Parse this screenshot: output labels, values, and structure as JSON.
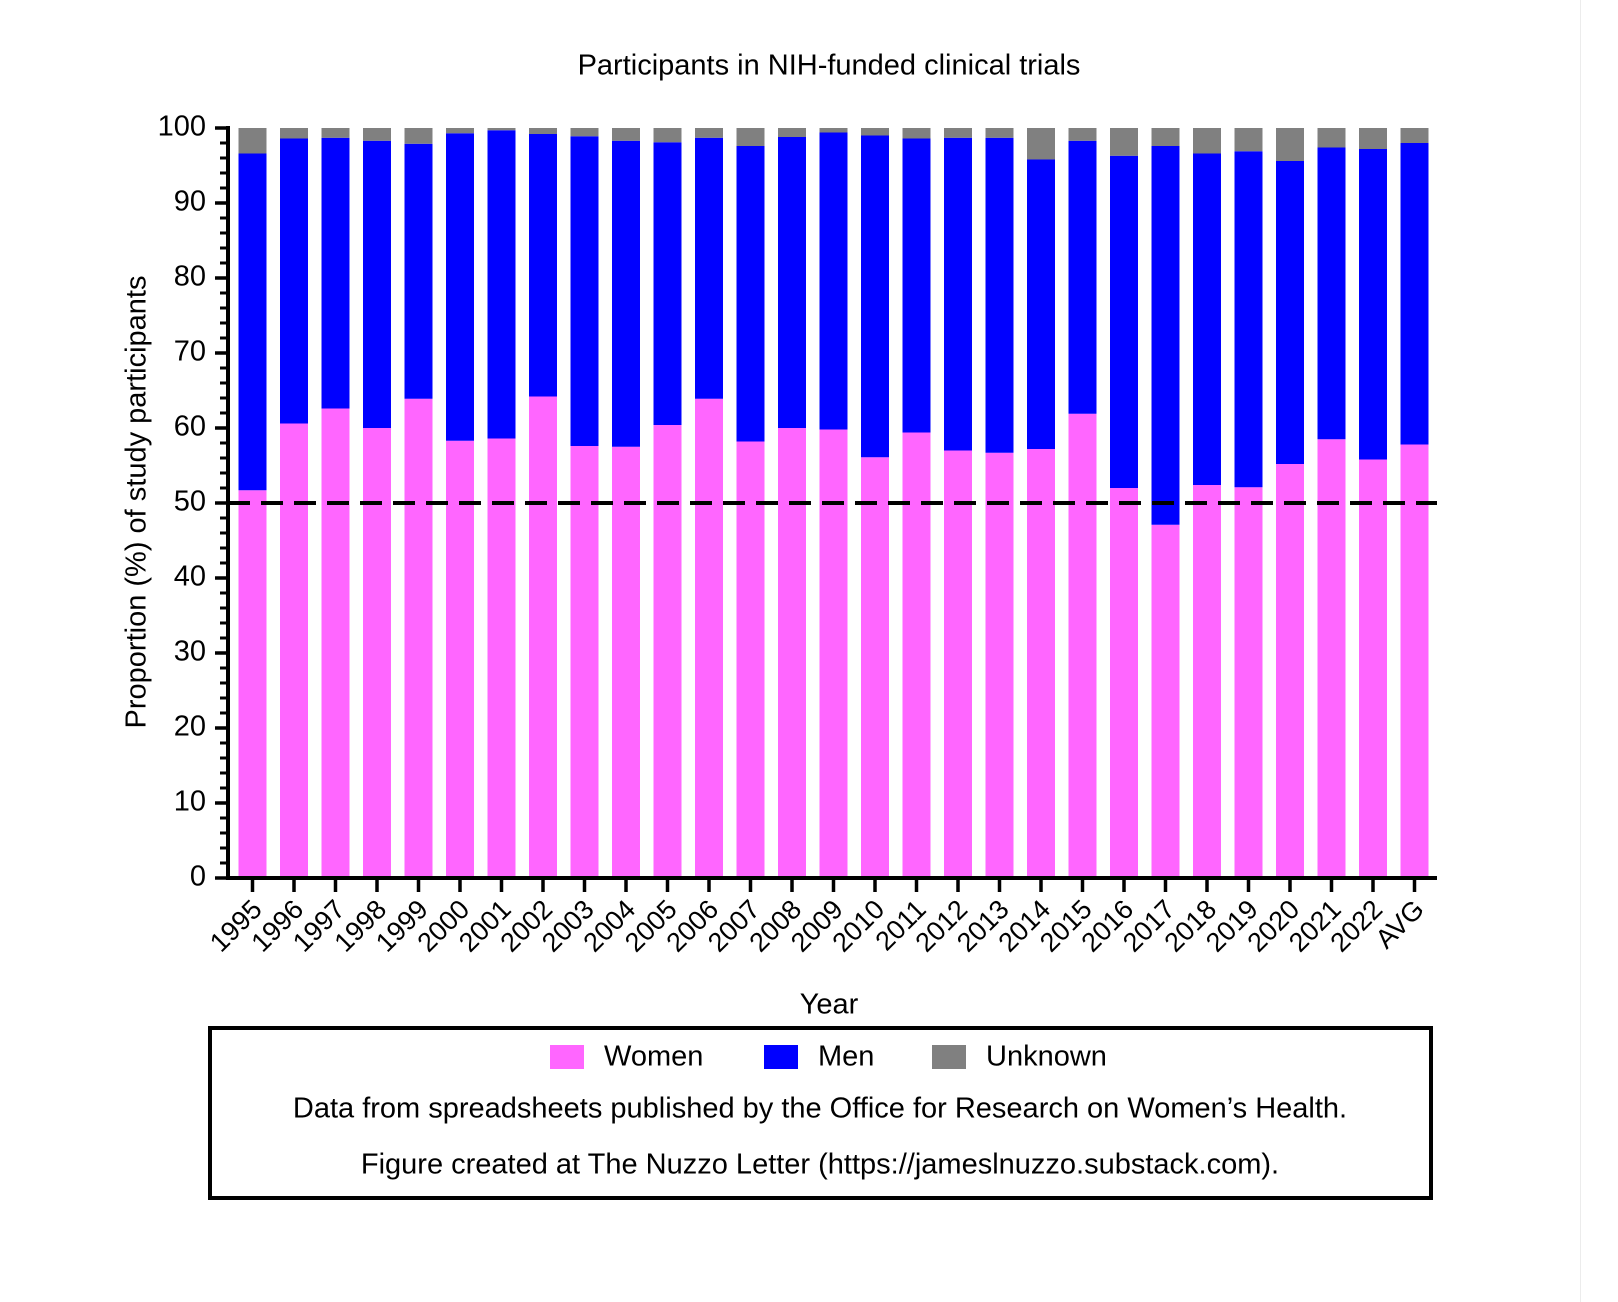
{
  "chart_data": {
    "type": "bar",
    "stacked": true,
    "title": "Participants in NIH-funded clinical trials",
    "xlabel": "Year",
    "ylabel": "Proportion (%) of study participants",
    "ylim": [
      0,
      100
    ],
    "yticks": [
      0,
      10,
      20,
      30,
      40,
      50,
      60,
      70,
      80,
      90,
      100
    ],
    "categories": [
      "1995",
      "1996",
      "1997",
      "1998",
      "1999",
      "2000",
      "2001",
      "2002",
      "2003",
      "2004",
      "2005",
      "2006",
      "2007",
      "2008",
      "2009",
      "2010",
      "2011",
      "2012",
      "2013",
      "2014",
      "2015",
      "2016",
      "2017",
      "2018",
      "2019",
      "2020",
      "2021",
      "2022",
      "AVG"
    ],
    "series": [
      {
        "name": "Women",
        "color": "#ff66ff",
        "values": [
          51.7,
          60.6,
          62.6,
          60.0,
          63.9,
          58.3,
          58.6,
          64.2,
          57.6,
          57.5,
          60.4,
          63.9,
          58.2,
          60.0,
          59.8,
          56.1,
          59.4,
          57.0,
          56.7,
          57.2,
          61.9,
          52.0,
          47.1,
          52.4,
          52.1,
          55.2,
          58.5,
          55.8,
          57.8
        ]
      },
      {
        "name": "Men",
        "color": "#0000ff",
        "values": [
          44.9,
          38.0,
          36.1,
          38.3,
          34.0,
          41.0,
          41.1,
          35.0,
          41.3,
          40.8,
          37.7,
          34.8,
          39.4,
          38.8,
          39.6,
          42.9,
          39.2,
          41.7,
          42.0,
          38.6,
          36.4,
          44.3,
          50.5,
          44.2,
          44.8,
          40.4,
          38.9,
          41.4,
          40.2
        ]
      },
      {
        "name": "Unknown",
        "color": "#808080",
        "values": [
          3.4,
          1.4,
          1.3,
          1.7,
          2.1,
          0.7,
          0.3,
          0.8,
          1.1,
          1.7,
          1.9,
          1.3,
          2.4,
          1.2,
          0.6,
          1.0,
          1.4,
          1.3,
          1.3,
          4.2,
          1.7,
          3.7,
          2.4,
          3.4,
          3.1,
          4.4,
          2.6,
          2.8,
          2.0
        ]
      }
    ],
    "reference_line": {
      "y": 50,
      "style": "dashed"
    },
    "grid": false,
    "legend": {
      "placement": "bottom",
      "entries": [
        "Women",
        "Men",
        "Unknown"
      ],
      "notes": [
        "Data from spreadsheets published by the Office for Research on Women’s Health.",
        "Figure created at The Nuzzo Letter (https://jameslnuzzo.substack.com)."
      ]
    }
  }
}
